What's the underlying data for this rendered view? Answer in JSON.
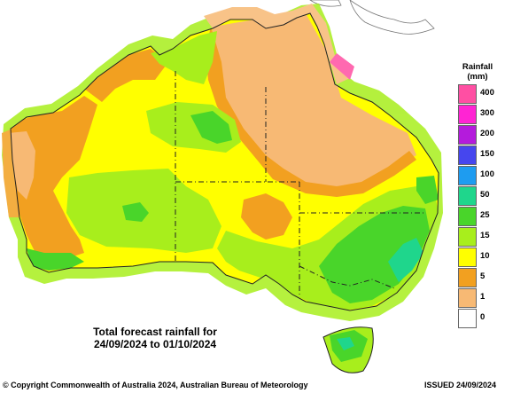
{
  "caption": {
    "line1": "Total forecast rainfall for",
    "line2": "24/09/2024 to 01/10/2024"
  },
  "legend": {
    "title": "Rainfall",
    "unit": "(mm)",
    "classes": [
      {
        "label": "400",
        "color": "#ff4fa3"
      },
      {
        "label": "300",
        "color": "#ff24d3"
      },
      {
        "label": "200",
        "color": "#b41bdc"
      },
      {
        "label": "150",
        "color": "#4646ee"
      },
      {
        "label": "100",
        "color": "#1e9cf0"
      },
      {
        "label": "50",
        "color": "#1fd68c"
      },
      {
        "label": "25",
        "color": "#49d52a"
      },
      {
        "label": "15",
        "color": "#a8ee1c"
      },
      {
        "label": "10",
        "color": "#ffff00"
      },
      {
        "label": "5",
        "color": "#f2a020"
      },
      {
        "label": "1",
        "color": "#f7b974"
      },
      {
        "label": "0",
        "color": "#ffffff"
      }
    ]
  },
  "footer": {
    "copyright": "© Copyright Commonwealth of Australia 2024, Australian Bureau of Meteorology",
    "issued": "ISSUED 24/09/2024"
  }
}
